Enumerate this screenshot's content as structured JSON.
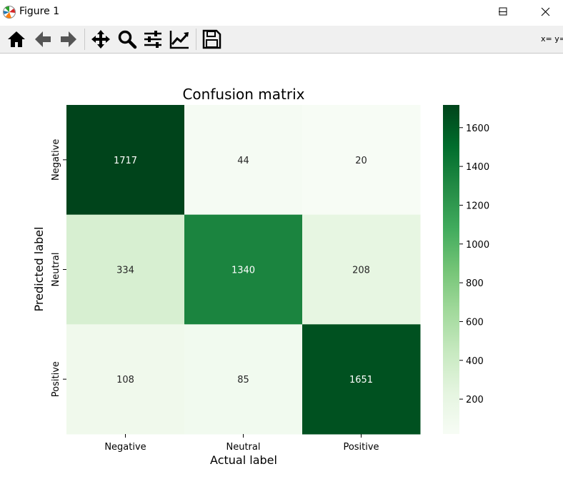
{
  "window": {
    "title": "Figure 1"
  },
  "toolbar": {
    "coords": "x= y="
  },
  "chart_data": {
    "type": "heatmap",
    "title": "Confusion matrix",
    "xlabel": "Actual label",
    "ylabel": "Predicted label",
    "x_categories": [
      "Negative",
      "Neutral",
      "Positive"
    ],
    "y_categories": [
      "Negative",
      "Neutral",
      "Positive"
    ],
    "values": [
      [
        1717,
        44,
        20
      ],
      [
        334,
        1340,
        208
      ],
      [
        108,
        85,
        1651
      ]
    ],
    "colormap": "Greens",
    "vmin": 20,
    "vmax": 1717,
    "colorbar_ticks": [
      200,
      400,
      600,
      800,
      1000,
      1200,
      1400,
      1600
    ]
  }
}
